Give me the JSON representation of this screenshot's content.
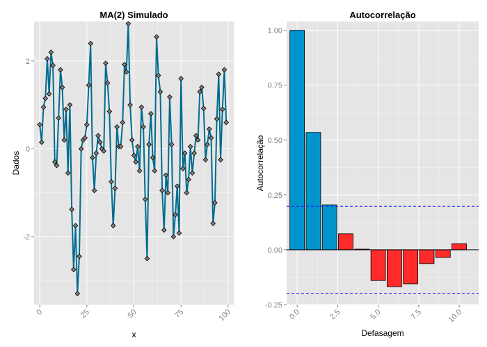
{
  "chart_data": [
    {
      "type": "line",
      "title": "MA(2) Simulado",
      "xlabel": "x",
      "ylabel": "Dados",
      "xlim": [
        -3,
        103
      ],
      "ylim": [
        -3.55,
        2.9
      ],
      "x_ticks": [
        0,
        25,
        50,
        75,
        100
      ],
      "x_tick_labels": [
        "0",
        "25",
        "50",
        "75",
        "100"
      ],
      "y_ticks": [
        -2,
        0,
        2
      ],
      "y_tick_labels": [
        "-2",
        "0",
        "2"
      ],
      "line_color": "#006c8f",
      "point_color": "#7f7f7f",
      "x": [
        0,
        1,
        2,
        3,
        4,
        5,
        6,
        7,
        8,
        9,
        10,
        11,
        12,
        13,
        14,
        15,
        16,
        17,
        18,
        19,
        20,
        21,
        22,
        23,
        24,
        25,
        26,
        27,
        28,
        29,
        30,
        31,
        32,
        33,
        34,
        35,
        36,
        37,
        38,
        39,
        40,
        41,
        42,
        43,
        44,
        45,
        46,
        47,
        48,
        49,
        50,
        51,
        52,
        53,
        54,
        55,
        56,
        57,
        58,
        59,
        60,
        61,
        62,
        63,
        64,
        65,
        66,
        67,
        68,
        69,
        70,
        71,
        72,
        73,
        74,
        75,
        76,
        77,
        78,
        79,
        80,
        81,
        82,
        83,
        84,
        85,
        86,
        87,
        88,
        89,
        90,
        91,
        92,
        93,
        94,
        95,
        96,
        97,
        98,
        99
      ],
      "values": [
        0.55,
        0.15,
        0.95,
        1.15,
        2.05,
        1.25,
        2.2,
        1.9,
        -0.3,
        -0.38,
        0.7,
        1.8,
        1.4,
        0.2,
        0.9,
        -0.55,
        1.0,
        -1.38,
        -2.75,
        -1.75,
        -3.3,
        -2.45,
        0.0,
        0.2,
        0.25,
        0.55,
        1.45,
        2.4,
        -0.2,
        -0.95,
        -0.1,
        0.3,
        0.15,
        0.0,
        -0.05,
        1.95,
        1.5,
        0.85,
        -0.75,
        -1.75,
        -0.9,
        0.5,
        0.05,
        0.05,
        0.6,
        1.92,
        1.75,
        2.85,
        1.0,
        0.2,
        -0.15,
        -0.3,
        0.05,
        -0.5,
        0.95,
        0.5,
        -1.15,
        -2.5,
        0.1,
        0.8,
        -0.2,
        -0.5,
        2.55,
        1.67,
        1.3,
        -0.95,
        -1.85,
        -0.6,
        -1.0,
        1.18,
        0.1,
        -2.0,
        -1.5,
        -0.85,
        -1.92,
        1.6,
        -0.45,
        -0.1,
        -1.0,
        -0.7,
        0.05,
        -0.55,
        -0.1,
        0.3,
        0.2,
        1.3,
        1.4,
        0.92,
        -0.25,
        0.1,
        0.45,
        0.25,
        -1.7,
        -1.23,
        0.68,
        1.7,
        -0.25,
        0.9,
        1.8,
        0.6
      ]
    },
    {
      "type": "bar",
      "title": "Autocorrelação",
      "xlabel": "Defasagem",
      "ylabel": "Autocorrelação",
      "xlim": [
        -0.65,
        11.2
      ],
      "ylim": [
        -0.25,
        1.04
      ],
      "x_ticks": [
        0,
        2.5,
        5,
        7.5,
        10
      ],
      "x_tick_labels": [
        "0.0",
        "2.5",
        "5.0",
        "7.5",
        "10.0"
      ],
      "y_ticks": [
        -0.25,
        0,
        0.25,
        0.5,
        0.75,
        1.0
      ],
      "y_tick_labels": [
        "-0.25",
        "0.00",
        "0.25",
        "0.50",
        "0.75",
        "1.00"
      ],
      "lags": [
        0,
        1,
        2,
        3,
        4,
        5,
        6,
        7,
        8,
        9,
        10
      ],
      "values": [
        1.0,
        0.535,
        0.205,
        0.073,
        0.003,
        -0.14,
        -0.168,
        -0.155,
        -0.063,
        -0.035,
        0.028
      ],
      "significant_color": "#0094cc",
      "nonsignificant_color": "#ff2a2a",
      "significant_lags": 3,
      "confidence_bounds": [
        0.198,
        -0.198
      ]
    }
  ]
}
